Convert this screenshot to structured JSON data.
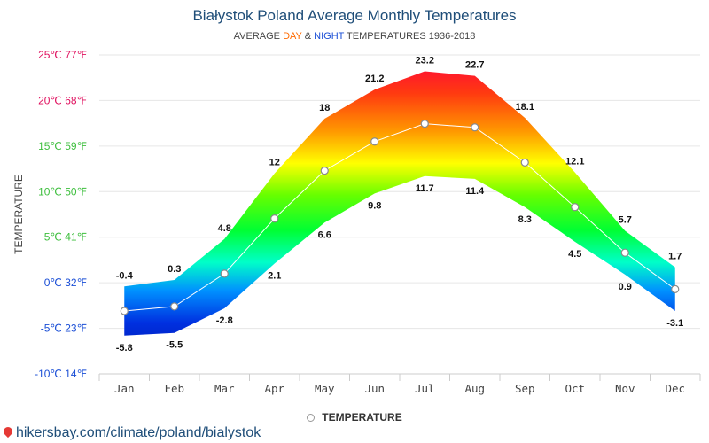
{
  "title": "Białystok Poland Average Monthly Temperatures",
  "subtitle": {
    "prefix": "AVERAGE",
    "day": "DAY",
    "amp": "&",
    "night": "NIGHT",
    "suffix": "TEMPERATURES 1936-2018"
  },
  "legend": {
    "label": "TEMPERATURE"
  },
  "source": "hikersbay.com/climate/poland/bialystok",
  "chart_data": {
    "type": "area",
    "title": "Białystok Poland Average Monthly Temperatures",
    "ylabel": "TEMPERATURE",
    "ylim": [
      -10,
      25
    ],
    "yticks": [
      {
        "value": 25,
        "label": "25℃ 77℉",
        "color": "#e0115f"
      },
      {
        "value": 20,
        "label": "20℃ 68℉",
        "color": "#e0115f"
      },
      {
        "value": 15,
        "label": "15℃ 59℉",
        "color": "#3fbf3f"
      },
      {
        "value": 10,
        "label": "10℃ 50℉",
        "color": "#3fbf3f"
      },
      {
        "value": 5,
        "label": "5℃ 41℉",
        "color": "#3fbf3f"
      },
      {
        "value": 0,
        "label": "0℃ 32℉",
        "color": "#1b4fd6"
      },
      {
        "value": -5,
        "label": "-5℃ 23℉",
        "color": "#1b4fd6"
      },
      {
        "value": -10,
        "label": "-10℃ 14℉",
        "color": "#1b4fd6"
      }
    ],
    "categories": [
      "Jan",
      "Feb",
      "Mar",
      "Apr",
      "May",
      "Jun",
      "Jul",
      "Aug",
      "Sep",
      "Oct",
      "Nov",
      "Dec"
    ],
    "day": [
      -0.4,
      0.3,
      4.8,
      12,
      18,
      21.2,
      23.2,
      22.7,
      18.1,
      12.1,
      5.7,
      1.7
    ],
    "night": [
      -5.8,
      -5.5,
      -2.8,
      2.1,
      6.6,
      9.8,
      11.7,
      11.4,
      8.3,
      4.5,
      0.9,
      -3.1
    ],
    "average": [
      -3.1,
      -2.6,
      1.0,
      7.05,
      12.3,
      15.5,
      17.45,
      17.05,
      13.2,
      8.3,
      3.3,
      -0.7
    ],
    "series": [
      {
        "name": "TEMPERATURE",
        "values": [
          -3.1,
          -2.6,
          1.0,
          7.05,
          12.3,
          15.5,
          17.45,
          17.05,
          13.2,
          8.3,
          3.3,
          -0.7
        ]
      }
    ],
    "grid": true,
    "legend_position": "bottom"
  }
}
